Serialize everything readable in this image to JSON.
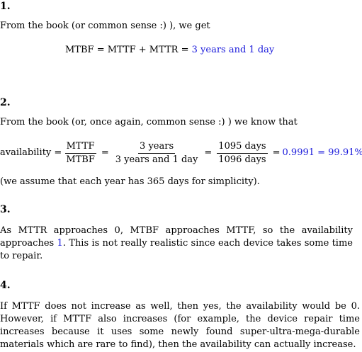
{
  "sections": [
    {
      "number": "1.",
      "intro": "From the book (or common sense :)  ), we get",
      "equation": {
        "lhs": "MTBF = MTTF + MTTR =",
        "result": "3 years and 1 day"
      }
    },
    {
      "number": "2.",
      "intro": "From the book (or, once again, common sense :)  ) we know that",
      "equation": {
        "label": "availability =",
        "frac1_num": "MTTF",
        "frac1_den": "MTBF",
        "eq_a": "=",
        "frac2_num": "3 years",
        "frac2_den": "3 years and 1 day",
        "eq_b": "=",
        "frac3_num": "1095 days",
        "frac3_den": "1096 days",
        "eq_c": "=",
        "result": "0.9991 = 99.91%"
      },
      "note": "(we assume that each year has 365 days for simplicity)."
    },
    {
      "number": "3.",
      "text_before": "As MTTR approaches 0, MTBF approaches MTTF, so the availability approaches ",
      "highlight": "1",
      "text_after": ". This is not really realistic since each device takes some time to repair."
    },
    {
      "number": "4.",
      "text": "If MTTF does not increase as well, then yes, the availability would be 0. However, if MTTF also increases (for example, the device repair time increases because it uses some newly found super-ultra-mega-durable materials which are rare to find), then the availability can actually increase."
    }
  ],
  "colors": {
    "highlight": "#1a1adb",
    "text": "#000000",
    "background": "#ffffff"
  }
}
